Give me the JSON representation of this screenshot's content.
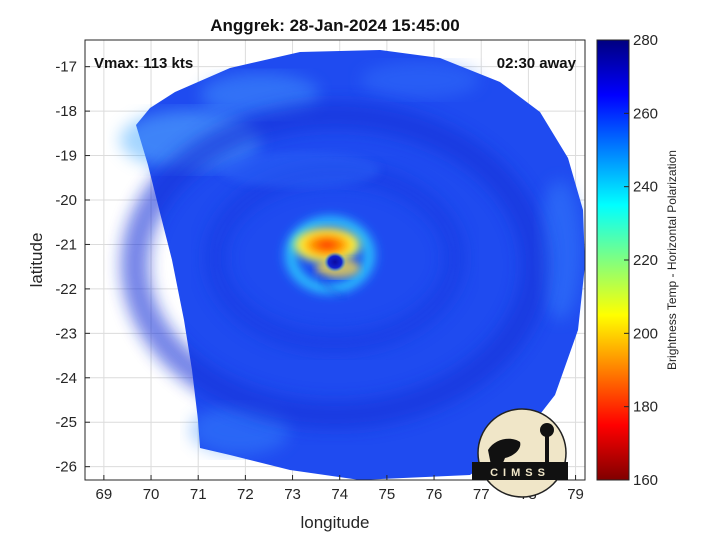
{
  "chart": {
    "title": "Anggrek: 28-Jan-2024 15:45:00",
    "annotation_left": "Vmax: 113 kts",
    "annotation_right": "02:30 away",
    "xlabel": "longitude",
    "ylabel": "latitude",
    "colorbar_label": "Brightness Temp - Horizontal Polarization",
    "logo_text": "CIMSS"
  },
  "chart_data": {
    "type": "heatmap",
    "xlim": [
      68.6,
      79.2
    ],
    "ylim": [
      -26.3,
      -16.4
    ],
    "x_ticks": [
      "69",
      "70",
      "71",
      "72",
      "73",
      "74",
      "75",
      "76",
      "77",
      "78",
      "79"
    ],
    "y_ticks": [
      "-17",
      "-18",
      "-19",
      "-20",
      "-21",
      "-22",
      "-23",
      "-24",
      "-25",
      "-26"
    ],
    "grid": true,
    "colorbar": {
      "min": 160,
      "max": 280,
      "ticks": [
        "160",
        "180",
        "200",
        "220",
        "240",
        "260",
        "280"
      ],
      "colors": [
        "#800000",
        "#ff0000",
        "#ff8000",
        "#ffff00",
        "#80ff80",
        "#00ffff",
        "#0080ff",
        "#0000ff",
        "#000080"
      ]
    },
    "storm_center": {
      "lon": 73.8,
      "lat": -21.35
    },
    "eyewall_min_temp": 185,
    "background_temp": 260
  }
}
